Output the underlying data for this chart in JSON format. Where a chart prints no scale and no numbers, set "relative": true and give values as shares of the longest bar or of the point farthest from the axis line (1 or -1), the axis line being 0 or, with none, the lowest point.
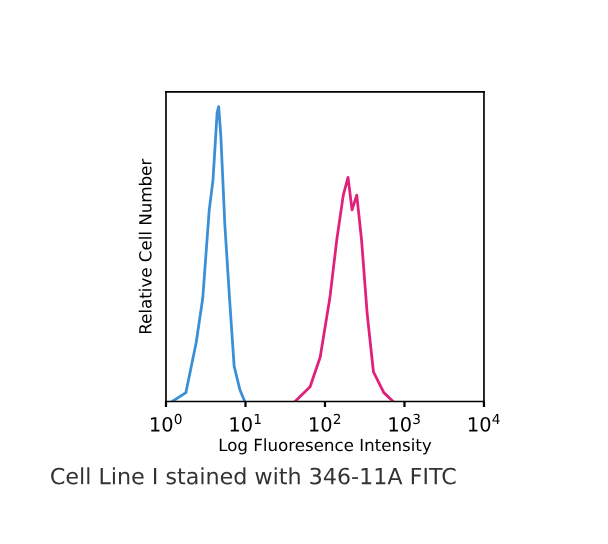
{
  "chart_data": {
    "type": "line",
    "relative": true,
    "xlabel": "Log Fluoresence Intensity",
    "ylabel": "Relative Cell Number",
    "log": "x",
    "xlim": [
      1,
      10000
    ],
    "xticks": [
      {
        "value": 1,
        "label": "10$^{0}$"
      },
      {
        "value": 10,
        "label": "10$^{1}$"
      },
      {
        "value": 100,
        "label": "10$^{2}$"
      },
      {
        "value": 1000,
        "label": "10$^{3}$"
      },
      {
        "value": 10000,
        "label": "10$^{4}$"
      }
    ],
    "series": [
      {
        "color": "#3a8fd6",
        "x": [
          1.2,
          1.78,
          2.4,
          2.9,
          3.5,
          3.9,
          4.4,
          4.6,
          4.9,
          5.5,
          6.3,
          7.2,
          8.5,
          9.8
        ],
        "values": [
          0,
          0.03,
          0.2,
          0.35,
          0.65,
          0.75,
          0.98,
          1.0,
          0.9,
          0.6,
          0.35,
          0.12,
          0.04,
          0
        ]
      },
      {
        "color": "#e0207a",
        "x": [
          42,
          65,
          87,
          115,
          141,
          170,
          195,
          219,
          251,
          288,
          339,
          407,
          550,
          720
        ],
        "values": [
          0,
          0.05,
          0.15,
          0.35,
          0.55,
          0.7,
          0.76,
          0.65,
          0.7,
          0.55,
          0.3,
          0.1,
          0.03,
          0
        ]
      }
    ],
    "annotations": [
      "Cell Line I stained with 346-11A FITC"
    ]
  }
}
